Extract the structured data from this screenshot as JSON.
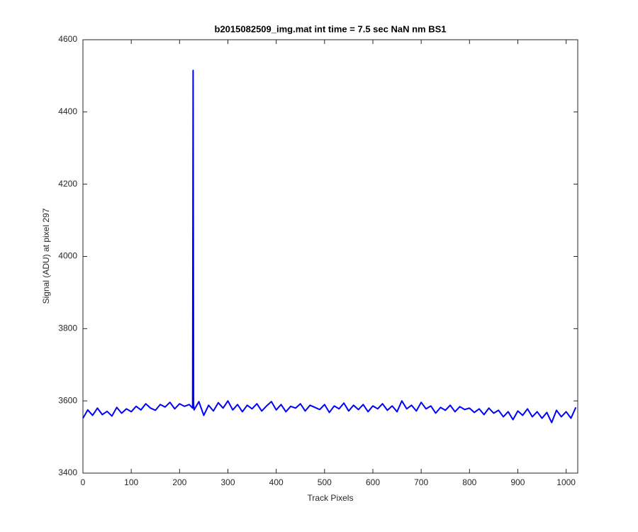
{
  "chart_data": {
    "type": "line",
    "title": "b2015082509_img.mat int time = 7.5 sec  NaN nm BS1",
    "x_label": "Track Pixels",
    "y_label": "Signal (ADU) at pixel 297",
    "color": "#0000ff",
    "xlim": [
      0,
      1024
    ],
    "ylim": [
      3400,
      4600
    ],
    "xticks": [
      0,
      100,
      200,
      300,
      400,
      500,
      600,
      700,
      800,
      900,
      1000
    ],
    "yticks": [
      3400,
      3600,
      3800,
      4000,
      4200,
      4400,
      4600
    ],
    "grid": false,
    "x": [
      0,
      10,
      20,
      30,
      40,
      50,
      60,
      70,
      80,
      90,
      100,
      110,
      120,
      130,
      140,
      150,
      160,
      170,
      180,
      190,
      200,
      210,
      220,
      227,
      228,
      229,
      230,
      240,
      250,
      260,
      270,
      280,
      290,
      300,
      310,
      320,
      330,
      340,
      350,
      360,
      370,
      380,
      390,
      400,
      410,
      420,
      430,
      440,
      450,
      460,
      470,
      480,
      490,
      500,
      510,
      520,
      530,
      540,
      550,
      560,
      570,
      580,
      590,
      600,
      610,
      620,
      630,
      640,
      650,
      660,
      670,
      680,
      690,
      700,
      710,
      720,
      730,
      740,
      750,
      760,
      770,
      780,
      790,
      800,
      810,
      820,
      830,
      840,
      850,
      860,
      870,
      880,
      890,
      900,
      910,
      920,
      930,
      940,
      950,
      960,
      970,
      980,
      990,
      1000,
      1010,
      1020
    ],
    "values": [
      3552,
      3575,
      3560,
      3580,
      3562,
      3571,
      3558,
      3582,
      3566,
      3578,
      3570,
      3585,
      3575,
      3592,
      3580,
      3574,
      3590,
      3583,
      3596,
      3578,
      3592,
      3585,
      3590,
      3580,
      4515,
      3590,
      3575,
      3598,
      3560,
      3588,
      3572,
      3595,
      3580,
      3600,
      3575,
      3590,
      3570,
      3588,
      3578,
      3592,
      3572,
      3586,
      3598,
      3575,
      3590,
      3570,
      3585,
      3580,
      3592,
      3572,
      3588,
      3582,
      3576,
      3590,
      3568,
      3586,
      3578,
      3594,
      3572,
      3588,
      3576,
      3590,
      3570,
      3586,
      3578,
      3592,
      3574,
      3586,
      3570,
      3600,
      3578,
      3588,
      3572,
      3596,
      3578,
      3586,
      3566,
      3582,
      3574,
      3588,
      3570,
      3584,
      3576,
      3580,
      3568,
      3578,
      3562,
      3580,
      3566,
      3574,
      3556,
      3570,
      3548,
      3572,
      3560,
      3578,
      3556,
      3570,
      3552,
      3568,
      3540,
      3574,
      3556,
      3570,
      3552,
      3582
    ]
  }
}
